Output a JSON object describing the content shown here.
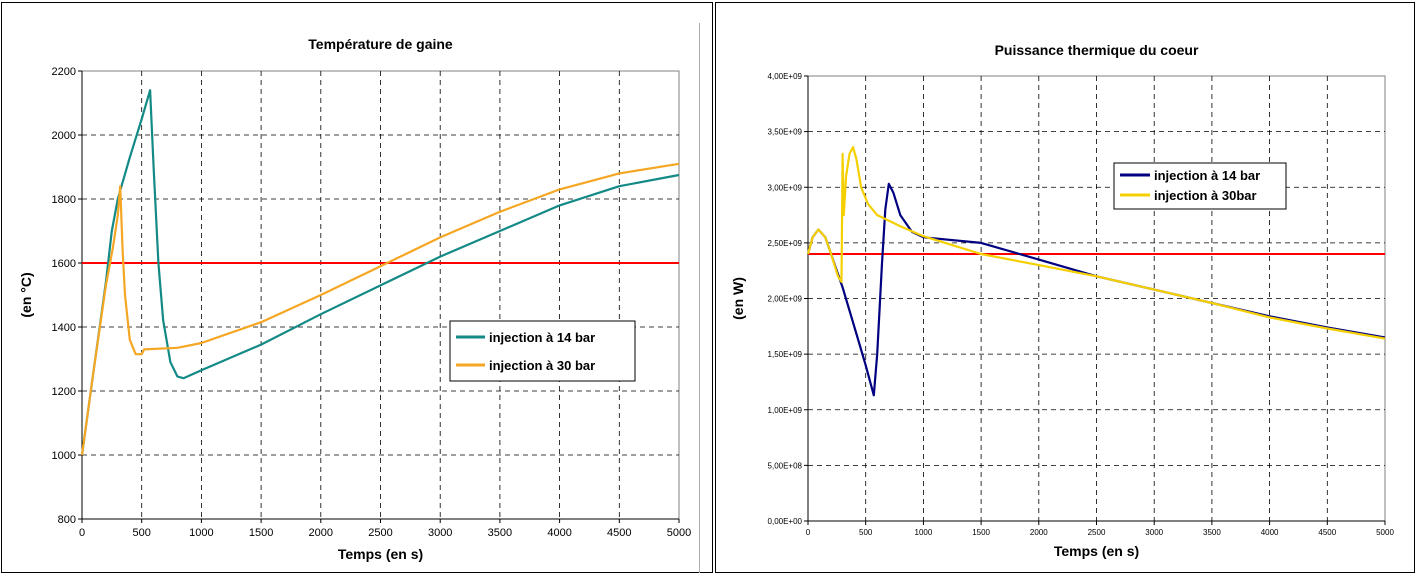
{
  "chart_data": [
    {
      "type": "line",
      "title": "Température de gaine",
      "xlabel": "Temps (en s)",
      "ylabel": "(en °C)",
      "xlim": [
        0,
        5000
      ],
      "ylim": [
        800,
        2200
      ],
      "xticks": [
        0,
        500,
        1000,
        1500,
        2000,
        2500,
        3000,
        3500,
        4000,
        4500,
        5000
      ],
      "yticks": [
        800,
        1000,
        1200,
        1400,
        1600,
        1800,
        2000,
        2200
      ],
      "x_tick_labels": [
        "0",
        "500",
        "1000",
        "1500",
        "2000",
        "2500",
        "3000",
        "3500",
        "4000",
        "4500",
        "5000"
      ],
      "y_tick_labels": [
        "800",
        "1000",
        "1200",
        "1400",
        "1600",
        "1800",
        "2000",
        "2200"
      ],
      "grid": "dashed",
      "legend_position": "center-right",
      "reference_line": {
        "y": 1600,
        "color": "#ff0000"
      },
      "series": [
        {
          "name": "injection à 14 bar",
          "color": "#138a86",
          "points": [
            [
              0,
              1000
            ],
            [
              100,
              1270
            ],
            [
              200,
              1540
            ],
            [
              250,
              1700
            ],
            [
              300,
              1800
            ],
            [
              400,
              1930
            ],
            [
              500,
              2050
            ],
            [
              570,
              2140
            ],
            [
              600,
              1900
            ],
            [
              640,
              1600
            ],
            [
              680,
              1420
            ],
            [
              740,
              1290
            ],
            [
              800,
              1245
            ],
            [
              850,
              1240
            ],
            [
              1000,
              1265
            ],
            [
              1500,
              1345
            ],
            [
              2000,
              1440
            ],
            [
              2500,
              1530
            ],
            [
              3000,
              1620
            ],
            [
              3500,
              1700
            ],
            [
              4000,
              1780
            ],
            [
              4500,
              1840
            ],
            [
              5000,
              1875
            ]
          ]
        },
        {
          "name": "injection à 30 bar",
          "color": "#f5a623",
          "points": [
            [
              0,
              1000
            ],
            [
              100,
              1270
            ],
            [
              200,
              1530
            ],
            [
              260,
              1650
            ],
            [
              300,
              1750
            ],
            [
              320,
              1840
            ],
            [
              340,
              1640
            ],
            [
              360,
              1500
            ],
            [
              400,
              1360
            ],
            [
              450,
              1315
            ],
            [
              500,
              1315
            ],
            [
              520,
              1330
            ],
            [
              800,
              1335
            ],
            [
              1000,
              1350
            ],
            [
              1500,
              1415
            ],
            [
              2000,
              1500
            ],
            [
              2500,
              1590
            ],
            [
              3000,
              1680
            ],
            [
              3500,
              1760
            ],
            [
              4000,
              1830
            ],
            [
              4500,
              1880
            ],
            [
              5000,
              1910
            ]
          ]
        }
      ]
    },
    {
      "type": "line",
      "title": "Puissance thermique du coeur",
      "xlabel": "Temps (en s)",
      "ylabel": "(en W)",
      "xlim": [
        0,
        5000
      ],
      "ylim": [
        0,
        4000000000
      ],
      "xticks": [
        0,
        500,
        1000,
        1500,
        2000,
        2500,
        3000,
        3500,
        4000,
        4500,
        5000
      ],
      "yticks": [
        0,
        500000000,
        1000000000,
        1500000000,
        2000000000,
        2500000000,
        3000000000,
        3500000000,
        4000000000
      ],
      "x_tick_labels": [
        "0",
        "500",
        "1000",
        "1500",
        "2000",
        "2500",
        "3000",
        "3500",
        "4000",
        "4500",
        "5000"
      ],
      "y_tick_labels": [
        "0,00E+00",
        "5,00E+08",
        "1,00E+09",
        "1,50E+09",
        "2,00E+09",
        "2,50E+09",
        "3,00E+09",
        "3,50E+09",
        "4,00E+09"
      ],
      "grid": "dashed",
      "legend_position": "center-right",
      "reference_line": {
        "y": 2400000000,
        "color": "#ff0000"
      },
      "series": [
        {
          "name": "injection à 14 bar",
          "color": "#000080",
          "points": [
            [
              0,
              2400000000
            ],
            [
              40,
              2550000000
            ],
            [
              90,
              2620000000
            ],
            [
              150,
              2550000000
            ],
            [
              200,
              2400000000
            ],
            [
              250,
              2250000000
            ],
            [
              300,
              2100000000
            ],
            [
              400,
              1750000000
            ],
            [
              500,
              1400000000
            ],
            [
              570,
              1130000000
            ],
            [
              600,
              1500000000
            ],
            [
              640,
              2300000000
            ],
            [
              670,
              2800000000
            ],
            [
              700,
              3030000000
            ],
            [
              740,
              2950000000
            ],
            [
              800,
              2750000000
            ],
            [
              900,
              2600000000
            ],
            [
              1000,
              2550000000
            ],
            [
              1500,
              2500000000
            ],
            [
              2000,
              2350000000
            ],
            [
              2500,
              2200000000
            ],
            [
              3000,
              2080000000
            ],
            [
              3500,
              1960000000
            ],
            [
              4000,
              1840000000
            ],
            [
              4500,
              1740000000
            ],
            [
              5000,
              1650000000
            ]
          ]
        },
        {
          "name": "injection à 30bar",
          "color": "#f5d000",
          "points": [
            [
              0,
              2400000000
            ],
            [
              40,
              2550000000
            ],
            [
              90,
              2620000000
            ],
            [
              150,
              2550000000
            ],
            [
              200,
              2400000000
            ],
            [
              260,
              2200000000
            ],
            [
              290,
              2150000000
            ],
            [
              300,
              3300000000
            ],
            [
              310,
              2750000000
            ],
            [
              330,
              3100000000
            ],
            [
              360,
              3300000000
            ],
            [
              390,
              3360000000
            ],
            [
              420,
              3250000000
            ],
            [
              460,
              3000000000
            ],
            [
              520,
              2850000000
            ],
            [
              600,
              2750000000
            ],
            [
              800,
              2650000000
            ],
            [
              1000,
              2560000000
            ],
            [
              1500,
              2400000000
            ],
            [
              2000,
              2300000000
            ],
            [
              2500,
              2200000000
            ],
            [
              3000,
              2080000000
            ],
            [
              3500,
              1960000000
            ],
            [
              4000,
              1830000000
            ],
            [
              4500,
              1730000000
            ],
            [
              5000,
              1640000000
            ]
          ]
        }
      ]
    }
  ]
}
